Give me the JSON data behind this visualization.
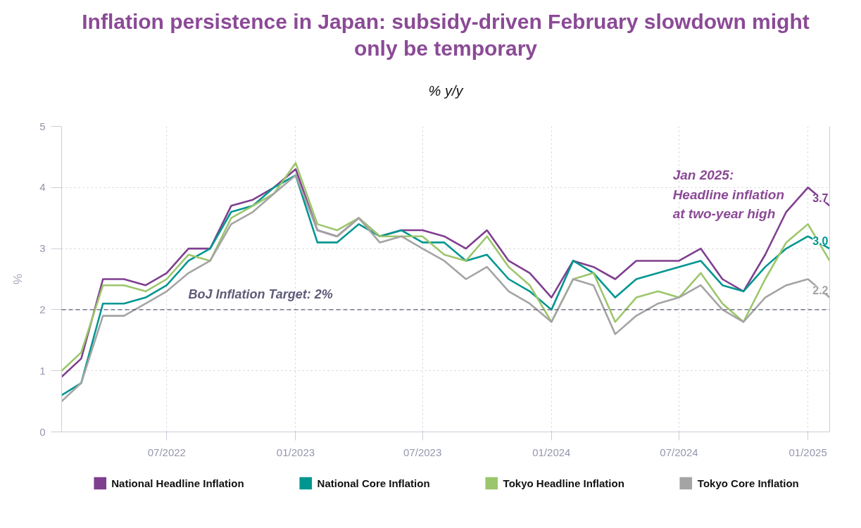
{
  "chart_data": {
    "type": "line",
    "title": "Inflation persistence in Japan: subsidy-driven February slowdown might only be temporary",
    "subtitle": "% y/y",
    "ylabel": "%",
    "x": [
      "2022-02",
      "2022-03",
      "2022-04",
      "2022-05",
      "2022-06",
      "2022-07",
      "2022-08",
      "2022-09",
      "2022-10",
      "2022-11",
      "2022-12",
      "2023-01",
      "2023-02",
      "2023-03",
      "2023-04",
      "2023-05",
      "2023-06",
      "2023-07",
      "2023-08",
      "2023-09",
      "2023-10",
      "2023-11",
      "2023-12",
      "2024-01",
      "2024-02",
      "2024-03",
      "2024-04",
      "2024-05",
      "2024-06",
      "2024-07",
      "2024-08",
      "2024-09",
      "2024-10",
      "2024-11",
      "2024-12",
      "2025-01",
      "2025-02"
    ],
    "series": [
      {
        "name": "National Headline Inflation",
        "color": "#7f3f8f",
        "values": [
          0.9,
          1.2,
          2.5,
          2.5,
          2.4,
          2.6,
          3.0,
          3.0,
          3.7,
          3.8,
          4.0,
          4.3,
          3.3,
          3.2,
          3.5,
          3.2,
          3.3,
          3.3,
          3.2,
          3.0,
          3.3,
          2.8,
          2.6,
          2.2,
          2.8,
          2.7,
          2.5,
          2.8,
          2.8,
          2.8,
          3.0,
          2.5,
          2.3,
          2.9,
          3.6,
          4.0,
          3.7
        ],
        "value_labels": [
          null,
          null,
          null,
          null,
          null,
          null,
          null,
          null,
          null,
          null,
          null,
          null,
          null,
          null,
          null,
          null,
          null,
          null,
          null,
          null,
          null,
          null,
          null,
          null,
          null,
          null,
          null,
          null,
          null,
          null,
          null,
          null,
          null,
          null,
          null,
          null,
          "3.7"
        ]
      },
      {
        "name": "National Core Inflation",
        "color": "#009690",
        "values": [
          0.6,
          0.8,
          2.1,
          2.1,
          2.2,
          2.4,
          2.8,
          3.0,
          3.6,
          3.7,
          4.0,
          4.2,
          3.1,
          3.1,
          3.4,
          3.2,
          3.3,
          3.1,
          3.1,
          2.8,
          2.9,
          2.5,
          2.3,
          2.0,
          2.8,
          2.6,
          2.2,
          2.5,
          2.6,
          2.7,
          2.8,
          2.4,
          2.3,
          2.7,
          3.0,
          3.2,
          3.0
        ],
        "value_labels": [
          null,
          null,
          null,
          null,
          null,
          null,
          null,
          null,
          null,
          null,
          null,
          null,
          null,
          null,
          null,
          null,
          null,
          null,
          null,
          null,
          null,
          null,
          null,
          null,
          null,
          null,
          null,
          null,
          null,
          null,
          null,
          null,
          null,
          null,
          null,
          null,
          "3.0"
        ]
      },
      {
        "name": "Tokyo Headline Inflation",
        "color": "#9cc66b",
        "values": [
          1.0,
          1.3,
          2.4,
          2.4,
          2.3,
          2.5,
          2.9,
          2.8,
          3.5,
          3.7,
          3.9,
          4.4,
          3.4,
          3.3,
          3.5,
          3.2,
          3.2,
          3.2,
          2.9,
          2.8,
          3.2,
          2.7,
          2.4,
          1.8,
          2.5,
          2.6,
          1.8,
          2.2,
          2.3,
          2.2,
          2.6,
          2.1,
          1.8,
          2.5,
          3.1,
          3.4,
          2.8
        ]
      },
      {
        "name": "Tokyo Core Inflation",
        "color": "#a4a4a4",
        "values": [
          0.5,
          0.8,
          1.9,
          1.9,
          2.1,
          2.3,
          2.6,
          2.8,
          3.4,
          3.6,
          3.9,
          4.2,
          3.3,
          3.2,
          3.5,
          3.1,
          3.2,
          3.0,
          2.8,
          2.5,
          2.7,
          2.3,
          2.1,
          1.8,
          2.5,
          2.4,
          1.6,
          1.9,
          2.1,
          2.2,
          2.4,
          2.0,
          1.8,
          2.2,
          2.4,
          2.5,
          2.2
        ],
        "value_labels": [
          null,
          null,
          null,
          null,
          null,
          null,
          null,
          null,
          null,
          null,
          null,
          null,
          null,
          null,
          null,
          null,
          null,
          null,
          null,
          null,
          null,
          null,
          null,
          null,
          null,
          null,
          null,
          null,
          null,
          null,
          null,
          null,
          null,
          null,
          null,
          null,
          "2.2"
        ]
      }
    ],
    "xlim": [
      "2022-02",
      "2025-02"
    ],
    "xticks": [
      {
        "value": "2022-07",
        "label": "07/2022"
      },
      {
        "value": "2023-01",
        "label": "01/2023"
      },
      {
        "value": "2023-07",
        "label": "07/2023"
      },
      {
        "value": "2024-01",
        "label": "01/2024"
      },
      {
        "value": "2024-07",
        "label": "07/2024"
      },
      {
        "value": "2025-01",
        "label": "01/2025"
      }
    ],
    "ylim": [
      0,
      5
    ],
    "yticks": [
      0,
      1,
      2,
      3,
      4,
      5
    ],
    "grid": true,
    "legend": "bottom",
    "ref_lines": [
      {
        "axis": "y",
        "value": 2,
        "label": "BoJ Inflation Target: 2%",
        "color": "#5e5c78",
        "line_style": "dashed"
      }
    ],
    "annotations": [
      {
        "text": "Jan 2025:\nHeadline inflation\nat two-year high",
        "x": "2025-01",
        "y": 4.0
      }
    ]
  }
}
